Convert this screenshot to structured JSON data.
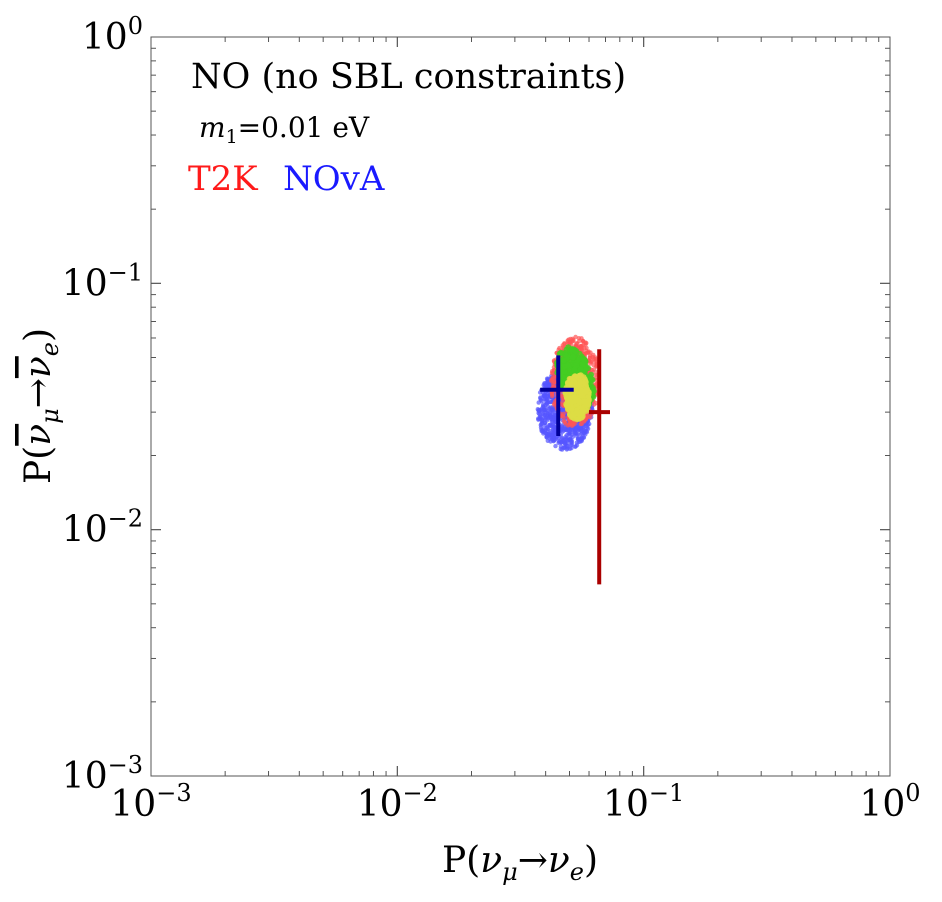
{
  "chart_data": {
    "type": "scatter",
    "title": "NO (no SBL constraints)",
    "subtitle": "m1=0.01 eV",
    "subtitle_parts": {
      "var": "m",
      "sub": "1",
      "rest": "=0.01 eV"
    },
    "xlabel": "P(νμ→νe)",
    "ylabel": "P(ν̄μ→ν̄e)",
    "x_scale": "log",
    "y_scale": "log",
    "xlim": [
      0.001,
      1
    ],
    "ylim": [
      0.001,
      1
    ],
    "x_ticks": [
      {
        "value": 0.001,
        "base": "10",
        "exp": "−3"
      },
      {
        "value": 0.01,
        "base": "10",
        "exp": "−2"
      },
      {
        "value": 0.1,
        "base": "10",
        "exp": "−1"
      },
      {
        "value": 1,
        "base": "10",
        "exp": "0"
      }
    ],
    "y_ticks": [
      {
        "value": 0.001,
        "base": "10",
        "exp": "−3"
      },
      {
        "value": 0.01,
        "base": "10",
        "exp": "−2"
      },
      {
        "value": 0.1,
        "base": "10",
        "exp": "−1"
      },
      {
        "value": 1,
        "base": "10",
        "exp": "0"
      }
    ],
    "legend": [
      {
        "name": "T2K",
        "color": "#ff1a1a"
      },
      {
        "name": "NOvA",
        "color": "#1a1aff"
      }
    ],
    "regions": [
      {
        "name": "NOvA scatter",
        "color": "#5555ff",
        "x_range": [
          0.037,
          0.062
        ],
        "y_range": [
          0.021,
          0.045
        ]
      },
      {
        "name": "T2K scatter",
        "color": "#ff5555",
        "x_range": [
          0.042,
          0.066
        ],
        "y_range": [
          0.026,
          0.061
        ]
      },
      {
        "name": "overlap band",
        "color": "#44cc22",
        "x_range": [
          0.045,
          0.062
        ],
        "y_range": [
          0.031,
          0.055
        ]
      },
      {
        "name": "core region",
        "color": "#dddd44",
        "x_range": [
          0.048,
          0.06
        ],
        "y_range": [
          0.028,
          0.043
        ]
      }
    ],
    "measurements": [
      {
        "name": "NOvA",
        "color": "#000099",
        "x": 0.045,
        "x_err": [
          0.038,
          0.052
        ],
        "y": 0.037,
        "y_err": [
          0.024,
          0.051
        ]
      },
      {
        "name": "T2K",
        "color": "#aa0000",
        "x": 0.066,
        "x_err": [
          0.06,
          0.073
        ],
        "y": 0.03,
        "y_err": [
          0.006,
          0.054
        ]
      }
    ]
  }
}
